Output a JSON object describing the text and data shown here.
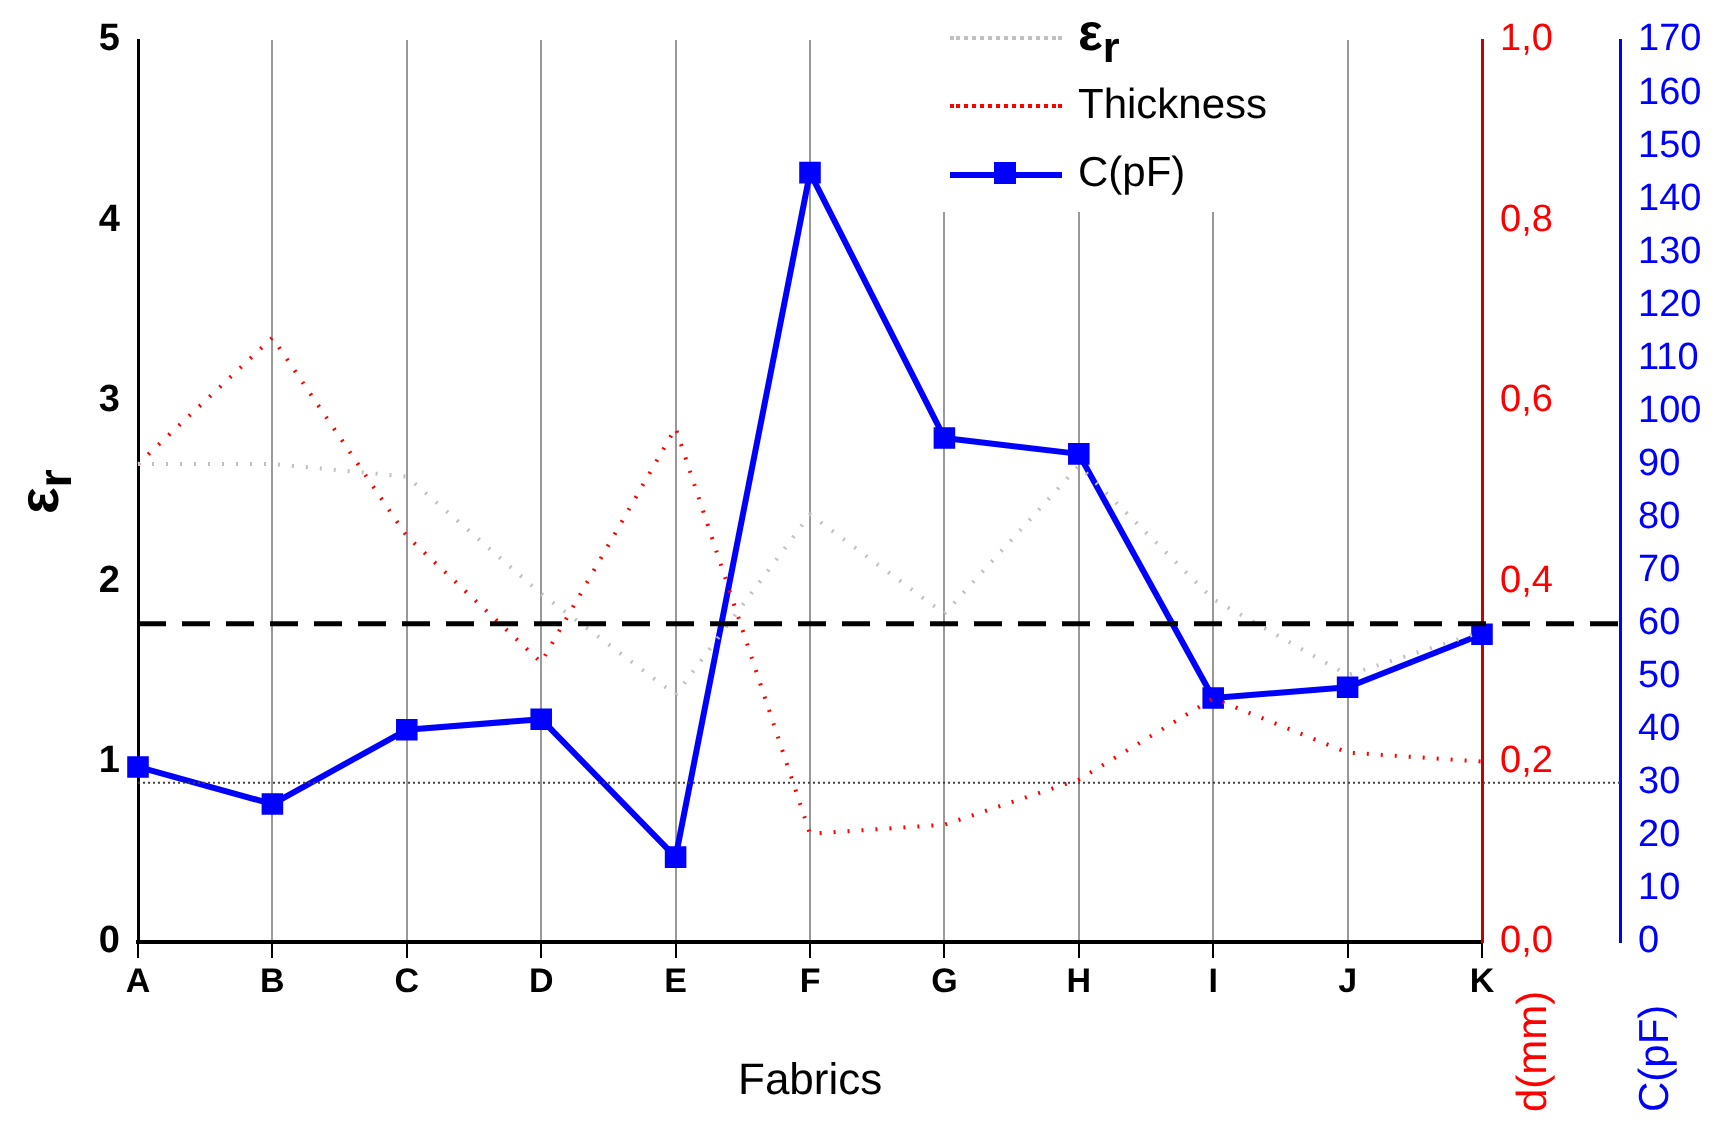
{
  "chart_data": {
    "type": "line",
    "xlabel": "Fabrics",
    "ylabel": "ε$_{r}$",
    "y2label": "d(mm)",
    "y3label": "C(pF)",
    "categories": [
      "A",
      "B",
      "C",
      "D",
      "E",
      "F",
      "G",
      "H",
      "I",
      "J",
      "K"
    ],
    "series": [
      {
        "name": "ε$_{r}$",
        "color": "#c0c0c0",
        "line_style": "dotted",
        "marker": "none",
        "values": [
          2.65,
          2.65,
          2.58,
          1.93,
          1.37,
          2.37,
          1.82,
          2.64,
          1.9,
          1.48,
          1.72
        ]
      },
      {
        "name": "Thickness",
        "color": "#ff0000",
        "line_style": "dotted",
        "marker": "none",
        "axis": "y2",
        "values": [
          0.53,
          0.67,
          0.45,
          0.31,
          0.57,
          0.12,
          0.13,
          0.18,
          0.27,
          0.21,
          0.2
        ]
      },
      {
        "name": "C(pF)",
        "color": "#0000ff",
        "line_style": "solid",
        "marker": "square",
        "axis": "y3",
        "values": [
          33,
          26,
          40,
          42,
          16,
          145,
          95,
          92,
          46,
          48,
          58
        ]
      }
    ],
    "ylim": [
      0,
      5
    ],
    "yticks": [
      0,
      1,
      2,
      3,
      4,
      5
    ],
    "y2lim": [
      0,
      1
    ],
    "y2ticks": [
      {
        "value": 0,
        "label": "0,0"
      },
      {
        "value": 0.2,
        "label": "0,2"
      },
      {
        "value": 0.4,
        "label": "0,4"
      },
      {
        "value": 0.6,
        "label": "0,6"
      },
      {
        "value": 0.8,
        "label": "0,8"
      },
      {
        "value": 1,
        "label": "1,0"
      }
    ],
    "y3lim": [
      0,
      170
    ],
    "y3ticks": [
      0,
      10,
      20,
      30,
      40,
      50,
      60,
      70,
      80,
      90,
      100,
      110,
      120,
      130,
      140,
      150,
      160,
      170
    ],
    "ref_lines": [
      {
        "axis": "y3",
        "value": 60,
        "color": "#000000",
        "line_style": "dashed"
      },
      {
        "axis": "y3",
        "value": 30,
        "color": "#404040",
        "line_style": "dotted"
      }
    ],
    "grid": "x",
    "legend": "top right"
  }
}
